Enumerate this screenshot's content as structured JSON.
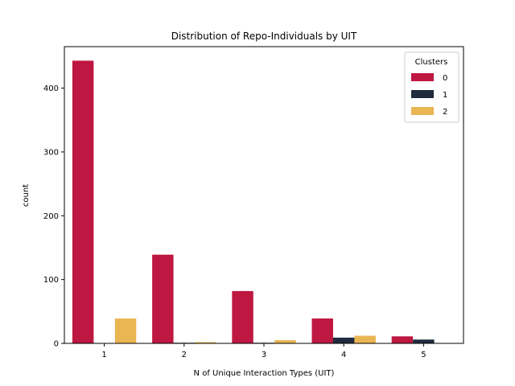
{
  "chart_data": {
    "type": "bar",
    "title": "Distribution of Repo-Individuals by UIT",
    "xlabel": "N of Unique Interaction Types (UIT)",
    "ylabel": "count",
    "categories": [
      "1",
      "2",
      "3",
      "4",
      "5"
    ],
    "ylim": [
      0,
      465
    ],
    "yticks": [
      0,
      100,
      200,
      300,
      400
    ],
    "grid": false,
    "legend": {
      "title": "Clusters",
      "placement": "top-right"
    },
    "series": [
      {
        "name": "0",
        "color": "#be1741",
        "values": [
          443,
          139,
          82,
          39,
          11
        ]
      },
      {
        "name": "1",
        "color": "#202b3d",
        "values": [
          0,
          1,
          1,
          9,
          6
        ]
      },
      {
        "name": "2",
        "color": "#e9b653",
        "values": [
          39,
          2,
          5,
          12,
          0
        ]
      }
    ]
  }
}
